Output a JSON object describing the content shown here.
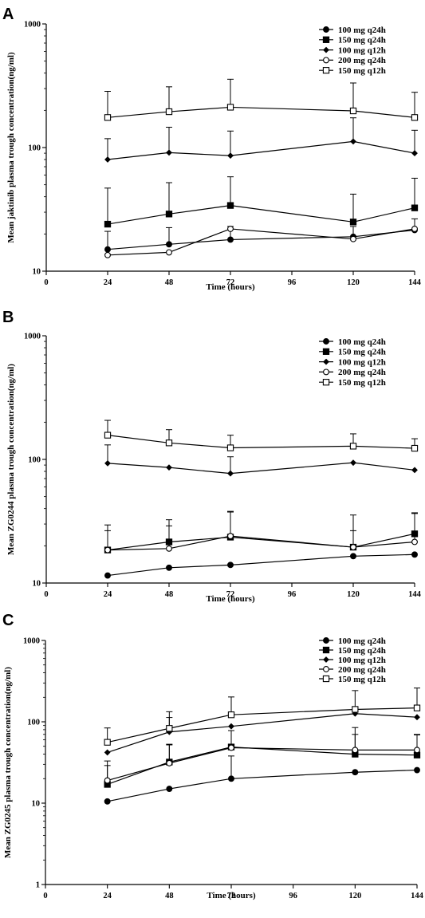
{
  "chart_data": [
    {
      "type": "line",
      "panel": "A",
      "xlabel": "Time (hours)",
      "ylabel": "Mean jaktinib plasma trough concentration(ng/ml)",
      "xlim": [
        0,
        144
      ],
      "xticks": [
        0,
        24,
        48,
        72,
        96,
        120,
        144
      ],
      "ylim": [
        10,
        1000
      ],
      "yscale": "log",
      "yticks": [
        10,
        100,
        1000
      ],
      "grid": false,
      "legend_position": "top-right",
      "x": [
        24,
        48,
        72,
        120,
        144
      ],
      "series": [
        {
          "name": "100 mg q24h",
          "marker": "filled-circle",
          "values": [
            15,
            16.5,
            18,
            19,
            21.5
          ],
          "errors": [
            6,
            6,
            5,
            4,
            5
          ]
        },
        {
          "name": "150 mg q24h",
          "marker": "filled-square",
          "values": [
            24,
            29,
            34,
            25,
            32.5
          ],
          "errors": [
            23,
            23,
            24,
            17,
            24
          ]
        },
        {
          "name": "100 mg q12h",
          "marker": "filled-diamond",
          "values": [
            80,
            91,
            86,
            112,
            90
          ],
          "errors": [
            38,
            55,
            50,
            62,
            48
          ]
        },
        {
          "name": "200 mg q24h",
          "marker": "open-circle",
          "values": [
            13.5,
            14.2,
            22,
            18.2,
            22
          ],
          "errors": [
            0,
            0,
            0,
            0,
            0
          ]
        },
        {
          "name": "150 mg q12h",
          "marker": "open-square",
          "values": [
            175,
            195,
            212,
            198,
            175
          ],
          "errors": [
            110,
            115,
            145,
            135,
            105
          ]
        }
      ]
    },
    {
      "type": "line",
      "panel": "B",
      "xlabel": "Time (hours)",
      "ylabel": "Mean ZG0244 plasma trough concentration(ng/ml)",
      "xlim": [
        0,
        144
      ],
      "xticks": [
        0,
        24,
        48,
        72,
        96,
        120,
        144
      ],
      "ylim": [
        10,
        1000
      ],
      "yscale": "log",
      "yticks": [
        10,
        100,
        1000
      ],
      "grid": false,
      "legend_position": "top-right",
      "x": [
        24,
        48,
        72,
        120,
        144
      ],
      "series": [
        {
          "name": "100 mg q24h",
          "marker": "filled-circle",
          "values": [
            11.5,
            13.3,
            14,
            16.5,
            17
          ],
          "errors": [
            0,
            0,
            0,
            0,
            0
          ]
        },
        {
          "name": "150 mg q24h",
          "marker": "filled-square",
          "values": [
            18.5,
            21.5,
            23.5,
            19.5,
            25
          ],
          "errors": [
            11,
            11,
            14,
            16,
            12
          ]
        },
        {
          "name": "100 mg q12h",
          "marker": "filled-diamond",
          "values": [
            93,
            86,
            77,
            94,
            82
          ],
          "errors": [
            38,
            0,
            28,
            0,
            0
          ]
        },
        {
          "name": "200 mg q24h",
          "marker": "open-circle",
          "values": [
            18.5,
            19,
            24,
            19.5,
            21.5
          ],
          "errors": [
            8,
            10,
            14,
            7,
            15
          ]
        },
        {
          "name": "150 mg q12h",
          "marker": "open-square",
          "values": [
            157,
            136,
            124,
            128,
            123
          ],
          "errors": [
            50,
            38,
            33,
            33,
            24
          ]
        }
      ]
    },
    {
      "type": "line",
      "panel": "C",
      "xlabel": "Time (hours)",
      "ylabel": "Mean ZG0245 plasma trough concentration(ng/ml)",
      "xlim": [
        0,
        144
      ],
      "xticks": [
        0,
        24,
        48,
        72,
        96,
        120,
        144
      ],
      "ylim": [
        1,
        1000
      ],
      "yscale": "log",
      "yticks": [
        1,
        10,
        100,
        1000
      ],
      "grid": false,
      "legend_position": "top-right",
      "x": [
        24,
        48,
        72,
        120,
        144
      ],
      "series": [
        {
          "name": "100 mg q24h",
          "marker": "filled-circle",
          "values": [
            10.5,
            15,
            20,
            24,
            25.5
          ],
          "errors": [
            0,
            0,
            18,
            0,
            0
          ]
        },
        {
          "name": "150 mg q24h",
          "marker": "filled-square",
          "values": [
            17,
            32,
            49,
            40,
            39
          ],
          "errors": [
            12,
            20,
            0,
            30,
            30
          ]
        },
        {
          "name": "100 mg q12h",
          "marker": "filled-diamond",
          "values": [
            42,
            75,
            88,
            126,
            114
          ],
          "errors": [
            0,
            38,
            0,
            0,
            0
          ]
        },
        {
          "name": "200 mg q24h",
          "marker": "open-circle",
          "values": [
            19,
            31,
            48,
            45,
            45
          ],
          "errors": [
            14,
            22,
            30,
            40,
            25
          ]
        },
        {
          "name": "150 mg q12h",
          "marker": "open-square",
          "values": [
            56,
            83,
            122,
            142,
            148
          ],
          "errors": [
            28,
            50,
            80,
            100,
            112
          ]
        }
      ]
    }
  ]
}
